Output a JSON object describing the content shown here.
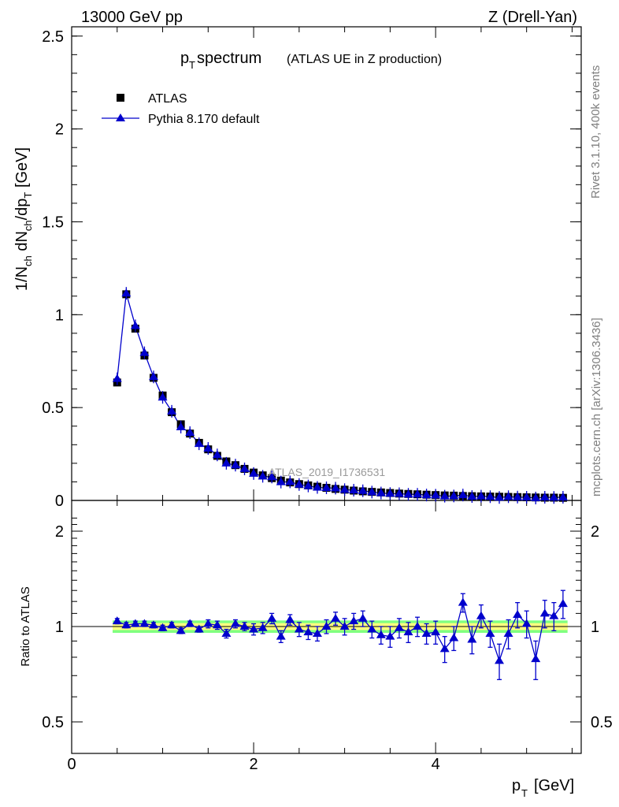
{
  "header": {
    "left": "13000 GeV pp",
    "right": "Z (Drell-Yan)"
  },
  "title": {
    "main_p": "p",
    "main_sub": "T",
    "main_rest": " spectrum",
    "paren": "(ATLAS UE in Z production)"
  },
  "side_labels": {
    "rivet": "Rivet 3.1.10,  400k events",
    "mcplots": "mcplots.cern.ch [arXiv:1306.3436]"
  },
  "watermark": "ATLAS_2019_I1736531",
  "legend": {
    "data_label": "ATLAS",
    "mc_label": "Pythia 8.170 default"
  },
  "axes": {
    "ylabel_main": "1/N_ch dN_ch/dp_T [GeV]",
    "ylabel_ratio": "Ratio to ATLAS",
    "xlabel": "p_T [GeV]"
  },
  "colors": {
    "data": "#000000",
    "mc": "#0000cc",
    "band_inner": "#ffff80",
    "band_outer": "#80ff80"
  },
  "chart_data": [
    {
      "type": "scatter",
      "title": "pT spectrum (ATLAS UE in Z production)",
      "xlabel": "p_T [GeV]",
      "ylabel": "1/N_ch dN_ch/dp_T [GeV]",
      "xlim": [
        0,
        5.5
      ],
      "ylim": [
        0,
        2.55
      ],
      "yticks": [
        0,
        0.5,
        1,
        1.5,
        2,
        2.5
      ],
      "xticks": [
        0,
        2,
        4
      ],
      "x": [
        0.5,
        0.6,
        0.7,
        0.8,
        0.9,
        1.0,
        1.1,
        1.2,
        1.3,
        1.4,
        1.5,
        1.6,
        1.7,
        1.8,
        1.9,
        2.0,
        2.1,
        2.2,
        2.3,
        2.4,
        2.5,
        2.6,
        2.7,
        2.8,
        2.9,
        3.0,
        3.1,
        3.2,
        3.3,
        3.4,
        3.5,
        3.6,
        3.7,
        3.8,
        3.9,
        4.0,
        4.1,
        4.2,
        4.3,
        4.4,
        4.5,
        4.6,
        4.7,
        4.8,
        4.9,
        5.0,
        5.1,
        5.2,
        5.3,
        5.4
      ],
      "series": [
        {
          "name": "ATLAS",
          "values": [
            0.635,
            1.11,
            0.925,
            0.78,
            0.66,
            0.565,
            0.475,
            0.41,
            0.36,
            0.31,
            0.275,
            0.24,
            0.21,
            0.19,
            0.17,
            0.15,
            0.135,
            0.12,
            0.107,
            0.097,
            0.088,
            0.081,
            0.074,
            0.068,
            0.062,
            0.058,
            0.053,
            0.049,
            0.046,
            0.043,
            0.04,
            0.037,
            0.035,
            0.033,
            0.031,
            0.029,
            0.027,
            0.026,
            0.024,
            0.023,
            0.022,
            0.021,
            0.02,
            0.019,
            0.018,
            0.017,
            0.016,
            0.015,
            0.015,
            0.014
          ]
        },
        {
          "name": "Pythia 8.170 default",
          "values": [
            0.655,
            1.115,
            0.94,
            0.795,
            0.665,
            0.555,
            0.48,
            0.395,
            0.365,
            0.305,
            0.28,
            0.245,
            0.2,
            0.19,
            0.17,
            0.145,
            0.13,
            0.126,
            0.099,
            0.1,
            0.086,
            0.078,
            0.07,
            0.068,
            0.066,
            0.058,
            0.055,
            0.052,
            0.045,
            0.04,
            0.037,
            0.036,
            0.033,
            0.033,
            0.029,
            0.028,
            0.023,
            0.024,
            0.029,
            0.021,
            0.023,
            0.02,
            0.016,
            0.02,
            0.018,
            0.017,
            0.013,
            0.017,
            0.016,
            0.017
          ]
        }
      ]
    },
    {
      "type": "scatter",
      "xlabel": "p_T [GeV]",
      "ylabel": "Ratio to ATLAS",
      "xlim": [
        0,
        5.5
      ],
      "ylim": [
        0.34,
        2.3
      ],
      "yticks": [
        0.5,
        1,
        2
      ],
      "x": [
        0.5,
        0.6,
        0.7,
        0.8,
        0.9,
        1.0,
        1.1,
        1.2,
        1.3,
        1.4,
        1.5,
        1.6,
        1.7,
        1.8,
        1.9,
        2.0,
        2.1,
        2.2,
        2.3,
        2.4,
        2.5,
        2.6,
        2.7,
        2.8,
        2.9,
        3.0,
        3.1,
        3.2,
        3.3,
        3.4,
        3.5,
        3.6,
        3.7,
        3.8,
        3.9,
        4.0,
        4.1,
        4.2,
        4.3,
        4.4,
        4.5,
        4.6,
        4.7,
        4.8,
        4.9,
        5.0,
        5.1,
        5.2,
        5.3,
        5.4
      ],
      "series": [
        {
          "name": "Pythia 8.170 default",
          "values": [
            1.04,
            1.01,
            1.02,
            1.02,
            1.01,
            0.99,
            1.01,
            0.97,
            1.02,
            0.98,
            1.02,
            1.01,
            0.95,
            1.02,
            1.0,
            0.98,
            0.99,
            1.06,
            0.93,
            1.05,
            0.98,
            0.96,
            0.95,
            1.0,
            1.06,
            1.0,
            1.04,
            1.06,
            0.98,
            0.94,
            0.93,
            0.99,
            0.96,
            1.0,
            0.95,
            0.96,
            0.85,
            0.92,
            1.19,
            0.91,
            1.08,
            0.95,
            0.78,
            0.95,
            1.09,
            1.02,
            0.79,
            1.1,
            1.08,
            1.18
          ],
          "errors": [
            0.02,
            0.02,
            0.02,
            0.02,
            0.02,
            0.02,
            0.02,
            0.02,
            0.02,
            0.02,
            0.03,
            0.03,
            0.03,
            0.03,
            0.03,
            0.04,
            0.04,
            0.04,
            0.04,
            0.04,
            0.05,
            0.05,
            0.05,
            0.05,
            0.05,
            0.06,
            0.06,
            0.06,
            0.06,
            0.06,
            0.07,
            0.07,
            0.07,
            0.07,
            0.07,
            0.08,
            0.08,
            0.08,
            0.08,
            0.09,
            0.09,
            0.09,
            0.1,
            0.1,
            0.1,
            0.1,
            0.11,
            0.11,
            0.11,
            0.12
          ]
        }
      ],
      "band_half_width_inner": 0.025,
      "band_half_width_outer": 0.045
    }
  ]
}
